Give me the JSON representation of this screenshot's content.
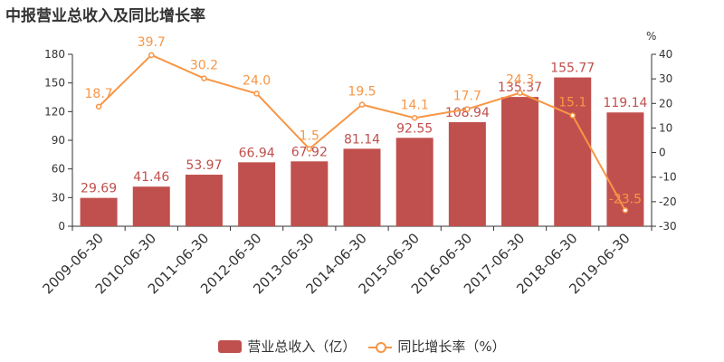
{
  "title": "中报营业总收入及同比增长率",
  "colors": {
    "bar": "#c0504d",
    "line": "#f79646",
    "axis": "#333333",
    "text": "#333333"
  },
  "legend": {
    "bar_label": "营业总收入（亿）",
    "line_label": "同比增长率（%）"
  },
  "chart_data": {
    "type": "bar",
    "categories": [
      "2009-06-30",
      "2010-06-30",
      "2011-06-30",
      "2012-06-30",
      "2013-06-30",
      "2014-06-30",
      "2015-06-30",
      "2016-06-30",
      "2017-06-30",
      "2018-06-30",
      "2019-06-30"
    ],
    "series": [
      {
        "name": "营业总收入（亿）",
        "type": "bar",
        "axis": "left",
        "values": [
          29.69,
          41.46,
          53.97,
          66.94,
          67.92,
          81.14,
          92.55,
          108.94,
          135.37,
          155.77,
          119.14
        ],
        "labels": [
          "29.69",
          "41.46",
          "53.97",
          "66.94",
          "67.92",
          "81.14",
          "92.55",
          "108.94",
          "135.37",
          "155.77",
          "119.14"
        ]
      },
      {
        "name": "同比增长率（%）",
        "type": "line",
        "axis": "right",
        "values": [
          18.7,
          39.7,
          30.2,
          24.0,
          1.5,
          19.5,
          14.1,
          17.7,
          24.3,
          15.1,
          -23.5
        ],
        "labels": [
          "18.7",
          "39.7",
          "30.2",
          "24.0",
          "1.5",
          "19.5",
          "14.1",
          "17.7",
          "24.3",
          "15.1",
          "-23.5"
        ]
      }
    ],
    "y_left": {
      "min": 0,
      "max": 180,
      "ticks": [
        "0",
        "30",
        "60",
        "90",
        "120",
        "150",
        "180"
      ]
    },
    "y_right": {
      "min": -30,
      "max": 40,
      "unit": "%",
      "ticks": [
        "-30",
        "-20",
        "-10",
        "0",
        "10",
        "20",
        "30",
        "40"
      ]
    },
    "grid": false,
    "legend_position": "bottom"
  }
}
